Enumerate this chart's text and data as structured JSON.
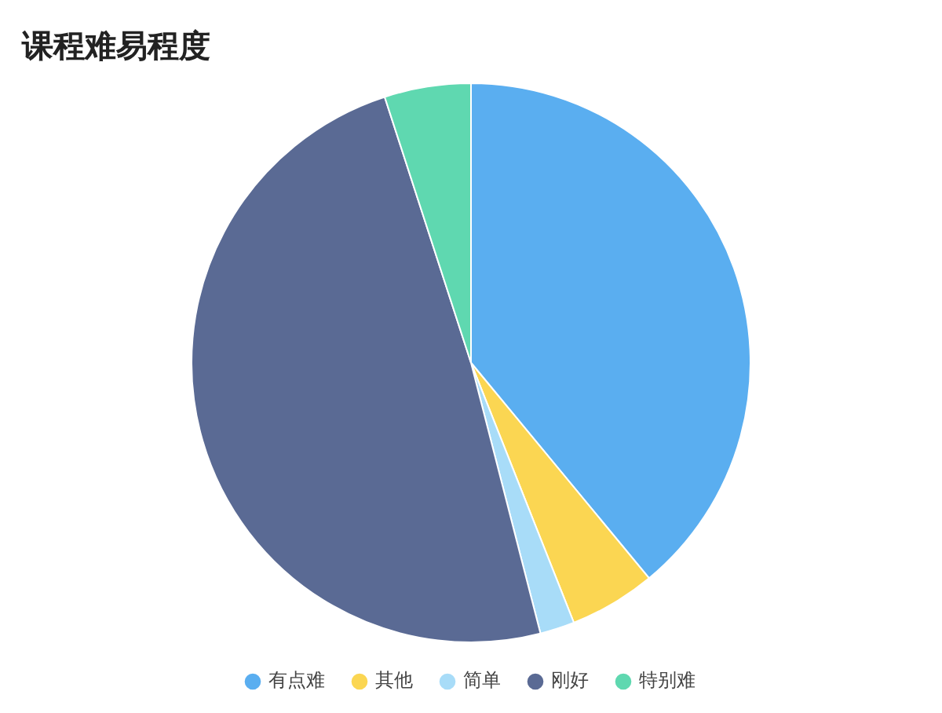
{
  "chart_data": {
    "type": "pie",
    "title": "课程难易程度",
    "categories": [
      "有点难",
      "其他",
      "简单",
      "刚好",
      "特别难"
    ],
    "values": [
      39,
      5,
      2,
      49,
      5
    ],
    "colors": [
      "#5aaef0",
      "#fbd652",
      "#a8dcf8",
      "#5a6a94",
      "#5fd8b0"
    ],
    "legend": "bottom"
  }
}
